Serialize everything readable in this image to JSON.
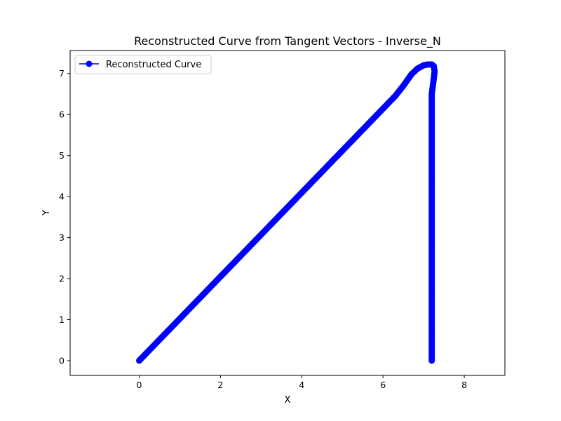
{
  "chart_data": {
    "type": "line",
    "title": "Reconstructed Curve from Tangent Vectors - Inverse_N",
    "xlabel": "X",
    "ylabel": "Y",
    "xlim": [
      -1.7,
      9.0
    ],
    "ylim": [
      -0.36,
      7.56
    ],
    "x_ticks": [
      "0",
      "2",
      "4",
      "6",
      "8"
    ],
    "y_ticks": [
      "0",
      "1",
      "2",
      "3",
      "4",
      "5",
      "6",
      "7"
    ],
    "grid": false,
    "legend_position": "top-left",
    "series": [
      {
        "name": "Reconstructed Curve",
        "color": "#0000ff",
        "marker": "circle",
        "points": [
          [
            0,
            0
          ],
          [
            6.3,
            6.45
          ],
          [
            6.5,
            6.7
          ],
          [
            6.7,
            6.98
          ],
          [
            6.85,
            7.12
          ],
          [
            7.0,
            7.2
          ],
          [
            7.1,
            7.22
          ],
          [
            7.2,
            7.22
          ],
          [
            7.25,
            7.18
          ],
          [
            7.27,
            7.05
          ],
          [
            7.24,
            6.8
          ],
          [
            7.2,
            6.5
          ],
          [
            7.2,
            6.2
          ],
          [
            7.2,
            0
          ]
        ]
      }
    ]
  }
}
